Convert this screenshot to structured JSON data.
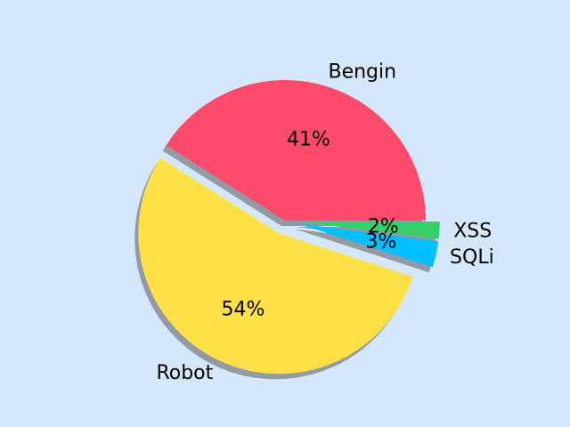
{
  "chart_data": {
    "type": "pie",
    "title": "",
    "background_color": "#d5e8fb",
    "shadow": true,
    "start_angle_deg": 0,
    "direction": "counterclockwise",
    "slices": [
      {
        "label": "Bengin",
        "value": 41,
        "pct_label": "41%",
        "color": "#ff4b6b",
        "explode": 0.0
      },
      {
        "label": "Robot",
        "value": 54,
        "pct_label": "54%",
        "color": "#ffe047",
        "explode": 0.1
      },
      {
        "label": "SQLi",
        "value": 3,
        "pct_label": "3%",
        "color": "#00bfff",
        "explode": 0.1
      },
      {
        "label": "XSS",
        "value": 2,
        "pct_label": "2%",
        "color": "#36cf6b",
        "explode": 0.1
      }
    ]
  }
}
